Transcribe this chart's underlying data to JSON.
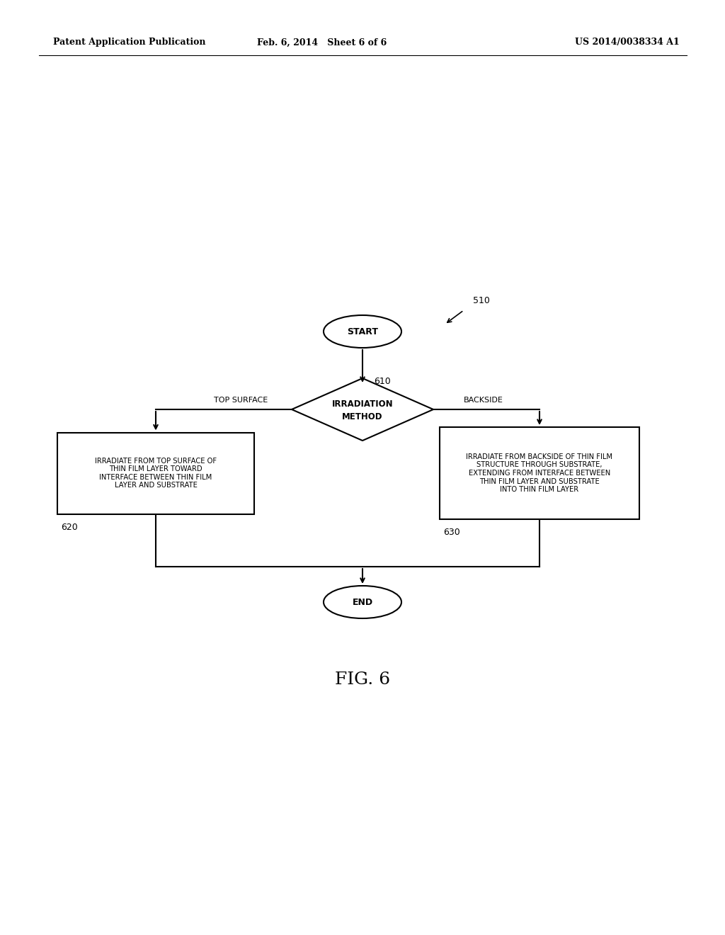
{
  "bg_color": "#ffffff",
  "text_color": "#000000",
  "header_left": "Patent Application Publication",
  "header_mid": "Feb. 6, 2014   Sheet 6 of 6",
  "header_right": "US 2014/0038334 A1",
  "fig_label": "FIG. 6",
  "label_510": "510",
  "label_610": "610",
  "label_620": "620",
  "label_630": "630",
  "start_text": "START",
  "end_text": "END",
  "diamond_line1": "IRRADIATION",
  "diamond_line2": "METHOD",
  "left_branch_label": "TOP SURFACE",
  "right_branch_label": "BACKSIDE",
  "left_box_text": "IRRADIATE FROM TOP SURFACE OF\nTHIN FILM LAYER TOWARD\nINTERFACE BETWEEN THIN FILM\nLAYER AND SUBSTRATE",
  "right_box_text": "IRRADIATE FROM BACKSIDE OF THIN FILM\nSTRUCTURE THROUGH SUBSTRATE,\nEXTENDING FROM INTERFACE BETWEEN\nTHIN FILM LAYER AND SUBSTRATE\nINTO THIN FILM LAYER"
}
